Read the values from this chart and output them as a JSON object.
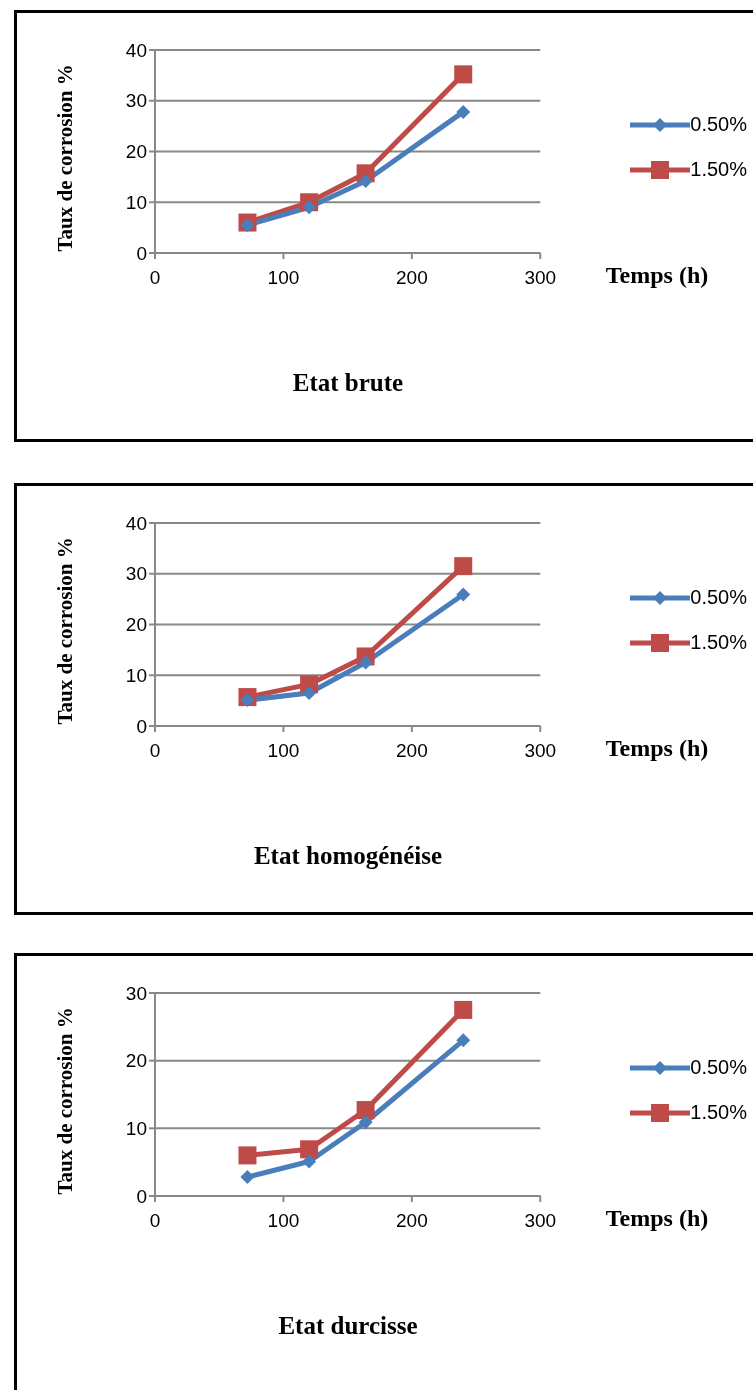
{
  "chart_data": [
    {
      "type": "line",
      "title": "Etat brute",
      "xlabel": "Temps (h)",
      "ylabel": "Taux de corrosion %",
      "x": [
        72,
        120,
        164,
        240
      ],
      "xlim": [
        0,
        300
      ],
      "xticks": [
        0,
        100,
        200,
        300
      ],
      "ylim": [
        0,
        40
      ],
      "yticks": [
        0,
        10,
        20,
        30,
        40
      ],
      "grid": "y",
      "legend": "right",
      "series": [
        {
          "name": "0.50%",
          "color": "#4a7ebb",
          "marker": "diamond",
          "values": [
            5.5,
            9,
            14.2,
            27.8
          ]
        },
        {
          "name": "1.50%",
          "color": "#be4b48",
          "marker": "square",
          "values": [
            6,
            10,
            15.7,
            35.2
          ]
        }
      ]
    },
    {
      "type": "line",
      "title": "Etat homogénéise",
      "xlabel": "Temps (h)",
      "ylabel": "Taux de corrosion %",
      "x": [
        72,
        120,
        164,
        240
      ],
      "xlim": [
        0,
        300
      ],
      "xticks": [
        0,
        100,
        200,
        300
      ],
      "ylim": [
        0,
        40
      ],
      "yticks": [
        0,
        10,
        20,
        30,
        40
      ],
      "grid": "y",
      "legend": "right",
      "series": [
        {
          "name": "0.50%",
          "color": "#4a7ebb",
          "marker": "diamond",
          "values": [
            5.1,
            6.5,
            12.5,
            25.9
          ]
        },
        {
          "name": "1.50%",
          "color": "#be4b48",
          "marker": "square",
          "values": [
            5.7,
            8.2,
            13.7,
            31.5
          ]
        }
      ]
    },
    {
      "type": "line",
      "title": "Etat durcisse",
      "xlabel": "Temps (h)",
      "ylabel": "Taux de corrosion %",
      "x": [
        72,
        120,
        164,
        240
      ],
      "xlim": [
        0,
        300
      ],
      "xticks": [
        0,
        100,
        200,
        300
      ],
      "ylim": [
        0,
        30
      ],
      "yticks": [
        0,
        10,
        20,
        30
      ],
      "grid": "y",
      "legend": "right",
      "series": [
        {
          "name": "0.50%",
          "color": "#4a7ebb",
          "marker": "diamond",
          "values": [
            2.8,
            5.1,
            10.9,
            23
          ]
        },
        {
          "name": "1.50%",
          "color": "#be4b48",
          "marker": "square",
          "values": [
            6,
            6.9,
            12.7,
            27.5
          ]
        }
      ]
    }
  ]
}
